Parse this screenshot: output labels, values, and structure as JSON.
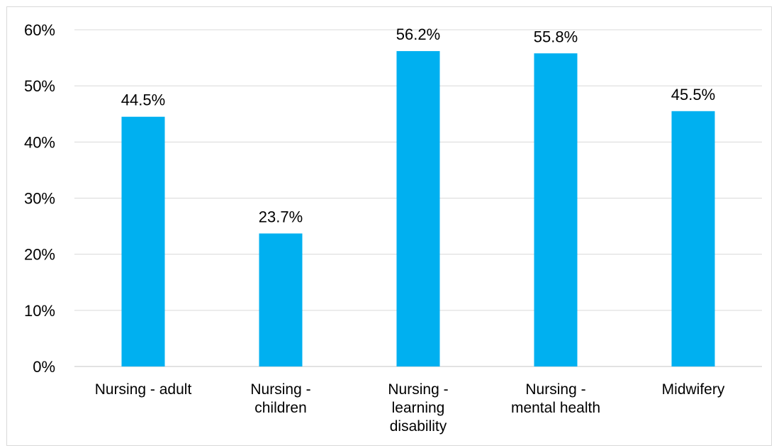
{
  "chart_data": {
    "type": "bar",
    "categories": [
      [
        "Nursing - adult"
      ],
      [
        "Nursing -",
        "children"
      ],
      [
        "Nursing -",
        "learning",
        "disability"
      ],
      [
        "Nursing -",
        "mental health"
      ],
      [
        "Midwifery"
      ]
    ],
    "values": [
      44.5,
      23.7,
      56.2,
      55.8,
      45.5
    ],
    "data_labels": [
      "44.5%",
      "23.7%",
      "56.2%",
      "55.8%",
      "45.5%"
    ],
    "y_ticks": [
      "0%",
      "10%",
      "20%",
      "30%",
      "40%",
      "50%",
      "60%"
    ],
    "ylim": [
      0,
      60
    ],
    "grid": true,
    "legend": "none",
    "colors": {
      "bar": "#00b0f0",
      "grid": "#d9d9d9",
      "axis": "#d9d9d9"
    }
  }
}
